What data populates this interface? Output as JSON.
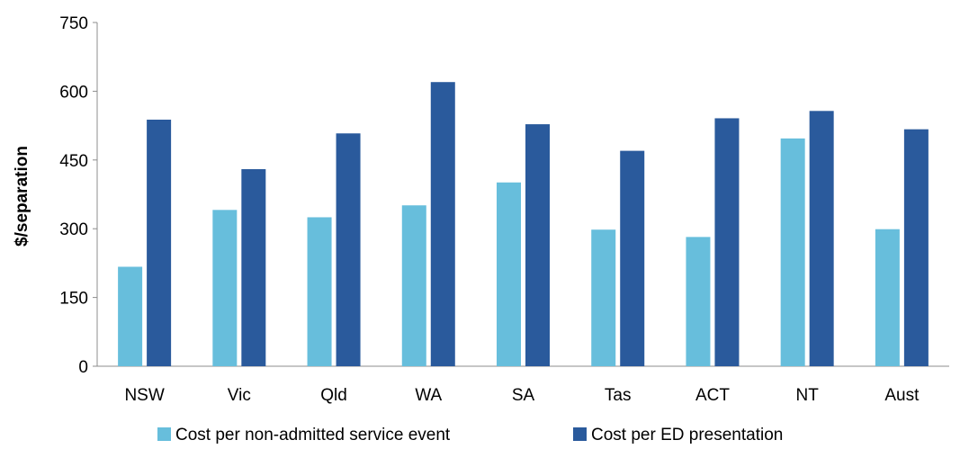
{
  "chart_data": {
    "type": "bar",
    "title": "",
    "xlabel": "",
    "ylabel": "$/separation",
    "ylim": [
      0,
      750
    ],
    "yticks": [
      0,
      150,
      300,
      450,
      600,
      750
    ],
    "grid": false,
    "legend_position": "bottom",
    "categories": [
      "NSW",
      "Vic",
      "Qld",
      "WA",
      "SA",
      "Tas",
      "ACT",
      "NT",
      "Aust"
    ],
    "series": [
      {
        "name": "Cost per non-admitted service event",
        "color": "#67bedc",
        "values": [
          217,
          341,
          325,
          351,
          401,
          298,
          282,
          497,
          299
        ]
      },
      {
        "name": "Cost per ED presentation",
        "color": "#2a5a9c",
        "values": [
          538,
          430,
          508,
          620,
          528,
          470,
          541,
          557,
          517
        ]
      }
    ]
  }
}
